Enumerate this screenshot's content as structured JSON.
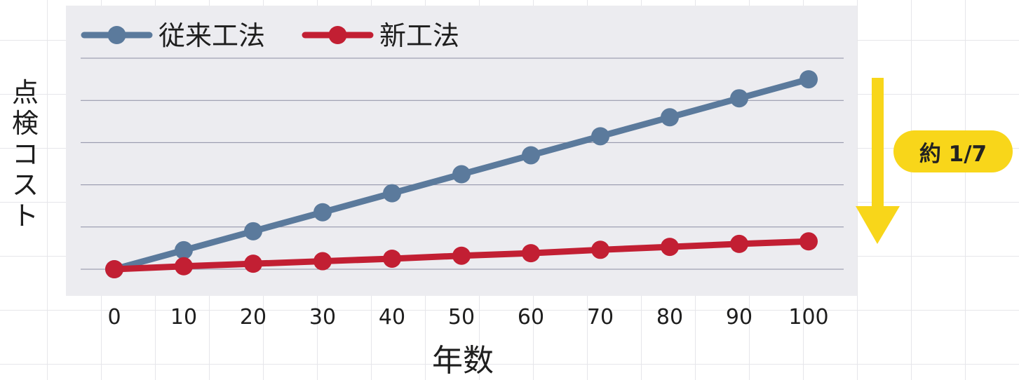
{
  "chart_data": {
    "type": "line",
    "title": "",
    "xlabel": "年数",
    "ylabel": "点検コスト",
    "x": [
      0,
      10,
      20,
      30,
      40,
      50,
      60,
      70,
      80,
      90,
      100
    ],
    "xticks": [
      "0",
      "10",
      "20",
      "30",
      "40",
      "50",
      "60",
      "70",
      "80",
      "90",
      "100"
    ],
    "ylim": [
      0,
      5
    ],
    "grid": true,
    "legend": "top-left",
    "series": [
      {
        "name": "従来工法",
        "color": "#5b7a9c",
        "values": [
          0,
          0.45,
          0.9,
          1.35,
          1.8,
          2.25,
          2.7,
          3.15,
          3.6,
          4.05,
          4.5
        ]
      },
      {
        "name": "新工法",
        "color": "#c21f33",
        "values": [
          0,
          0.07,
          0.13,
          0.19,
          0.25,
          0.32,
          0.38,
          0.46,
          0.53,
          0.6,
          0.66
        ]
      }
    ],
    "annotation": {
      "text": "約 1/7",
      "arrow_color": "#f8d61a"
    }
  }
}
